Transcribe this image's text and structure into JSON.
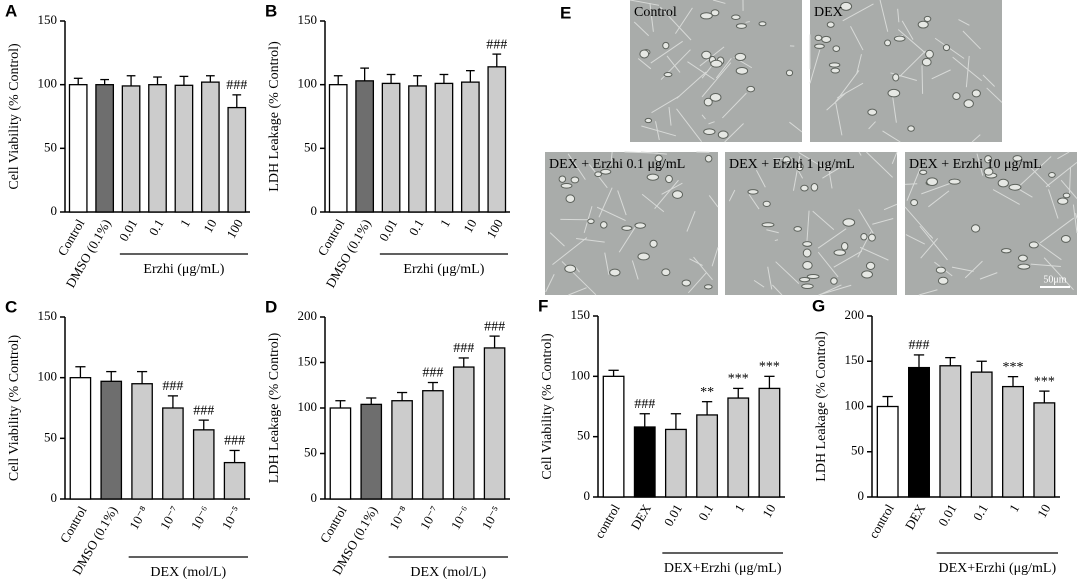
{
  "chart_data": [
    {
      "type": "bar",
      "panel": "A",
      "y_label": "Cell Viability (% Control)",
      "categories": [
        "Control",
        "DMSO (0.1%)",
        "0.01",
        "0.1",
        "1",
        "10",
        "100"
      ],
      "values": [
        100,
        100,
        99,
        100,
        99.5,
        102,
        82
      ],
      "errors": [
        5,
        4,
        8,
        6,
        7,
        5,
        10
      ],
      "colors": [
        "#ffffff",
        "#6e6e6e",
        "#cccccc",
        "#cccccc",
        "#cccccc",
        "#cccccc",
        "#cccccc"
      ],
      "significance": [
        null,
        null,
        null,
        null,
        null,
        null,
        "###"
      ],
      "group_label": "Erzhi (μg/mL)",
      "ylim": [
        0,
        150
      ],
      "yticks": [
        0,
        50,
        100,
        150
      ]
    },
    {
      "type": "bar",
      "panel": "B",
      "y_label": "LDH Leakage (% Control)",
      "categories": [
        "Control",
        "DMSO (0.1%)",
        "0.01",
        "0.1",
        "1",
        "10",
        "100"
      ],
      "values": [
        100,
        103,
        101,
        99,
        101,
        102,
        114
      ],
      "errors": [
        7,
        10,
        7,
        8,
        7,
        9,
        10
      ],
      "colors": [
        "#ffffff",
        "#6e6e6e",
        "#cccccc",
        "#cccccc",
        "#cccccc",
        "#cccccc",
        "#cccccc"
      ],
      "significance": [
        null,
        null,
        null,
        null,
        null,
        null,
        "###"
      ],
      "group_label": "Erzhi (μg/mL)",
      "ylim": [
        0,
        150
      ],
      "yticks": [
        0,
        50,
        100,
        150
      ]
    },
    {
      "type": "bar",
      "panel": "C",
      "y_label": "Cell Viability (% Control)",
      "categories": [
        "Control",
        "DMSO (0.1%)",
        "10⁻⁸",
        "10⁻⁷",
        "10⁻⁶",
        "10⁻⁵"
      ],
      "values": [
        100,
        97,
        95,
        75,
        57,
        30
      ],
      "errors": [
        9,
        8,
        10,
        10,
        8,
        10
      ],
      "colors": [
        "#ffffff",
        "#6e6e6e",
        "#cccccc",
        "#cccccc",
        "#cccccc",
        "#cccccc"
      ],
      "significance": [
        null,
        null,
        null,
        "###",
        "###",
        "###"
      ],
      "group_label": "DEX (mol/L)",
      "ylim": [
        0,
        150
      ],
      "yticks": [
        0,
        50,
        100,
        150
      ]
    },
    {
      "type": "bar",
      "panel": "D",
      "y_label": "LDH Leakage (% Control)",
      "categories": [
        "Control",
        "DMSO (0.1%)",
        "10⁻⁸",
        "10⁻⁷",
        "10⁻⁶",
        "10⁻⁵"
      ],
      "values": [
        100,
        104,
        108,
        119,
        145,
        166
      ],
      "errors": [
        8,
        7,
        9,
        9,
        10,
        13
      ],
      "colors": [
        "#ffffff",
        "#6e6e6e",
        "#cccccc",
        "#cccccc",
        "#cccccc",
        "#cccccc"
      ],
      "significance": [
        null,
        null,
        null,
        "###",
        "###",
        "###"
      ],
      "group_label": "DEX (mol/L)",
      "ylim": [
        0,
        200
      ],
      "yticks": [
        0,
        50,
        100,
        150,
        200
      ]
    },
    {
      "type": "bar",
      "panel": "F",
      "y_label": "Cell Viability (% Control)",
      "categories": [
        "control",
        "DEX",
        "0.01",
        "0.1",
        "1",
        "10"
      ],
      "values": [
        100,
        58,
        56,
        68,
        82,
        90
      ],
      "errors": [
        5,
        11,
        13,
        11,
        8,
        10
      ],
      "colors": [
        "#ffffff",
        "#000000",
        "#cccccc",
        "#cccccc",
        "#cccccc",
        "#cccccc"
      ],
      "significance": [
        null,
        "###",
        null,
        "**",
        "***",
        "***"
      ],
      "group_label": "DEX+Erzhi (μg/mL)",
      "ylim": [
        0,
        150
      ],
      "yticks": [
        0,
        50,
        100,
        150
      ]
    },
    {
      "type": "bar",
      "panel": "G",
      "y_label": "LDH Leakage (% Control)",
      "categories": [
        "control",
        "DEX",
        "0.01",
        "0.1",
        "1",
        "10"
      ],
      "values": [
        100,
        143,
        145,
        138,
        122,
        104
      ],
      "errors": [
        11,
        14,
        9,
        12,
        11,
        13
      ],
      "colors": [
        "#ffffff",
        "#000000",
        "#cccccc",
        "#cccccc",
        "#cccccc",
        "#cccccc"
      ],
      "significance": [
        null,
        "###",
        null,
        null,
        "***",
        "***"
      ],
      "group_label": "DEX+Erzhi (μg/mL)",
      "ylim": [
        0,
        200
      ],
      "yticks": [
        0,
        50,
        100,
        150,
        200
      ]
    }
  ],
  "micrographs": {
    "panel": "E",
    "images": [
      "Control",
      "DEX",
      "DEX + Erzhi 0.1 μg/mL",
      "DEX + Erzhi 1 μg/mL",
      "DEX + Erzhi 10 μg/mL"
    ],
    "scale_bar": "50μm"
  }
}
